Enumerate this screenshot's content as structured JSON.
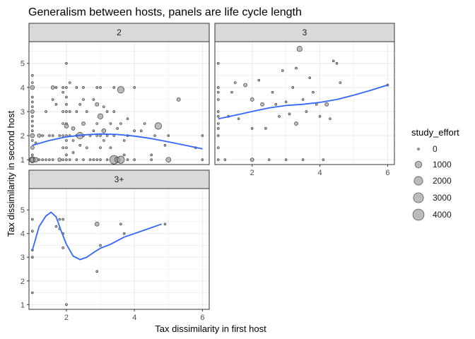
{
  "chart_data": {
    "type": "scatter",
    "title": "Generalism between hosts, panels are life cycle length",
    "xlabel": "Tax dissimilarity in first host",
    "ylabel": "Tax dissimilarity in second host",
    "xlim": [
      0.9,
      6.2
    ],
    "ylim": [
      0.8,
      5.9
    ],
    "x_ticks": [
      2,
      4,
      6
    ],
    "y_ticks": [
      1,
      2,
      3,
      4,
      5
    ],
    "grid": true,
    "legend": {
      "title": "study_effort",
      "position": "right",
      "entries": [
        {
          "label": "0",
          "value": 0
        },
        {
          "label": "1000",
          "value": 1000
        },
        {
          "label": "2000",
          "value": 2000
        },
        {
          "label": "3000",
          "value": 3000
        },
        {
          "label": "4000",
          "value": 4000
        }
      ]
    },
    "colors": {
      "point_fill": "#9e9e9e",
      "point_stroke": "#000000",
      "smooth_line": "#3366ff",
      "strip_fill": "#d9d9d9",
      "grid": "#ebebeb",
      "panel_border": "#333333"
    },
    "panels": [
      {
        "label": "2",
        "points": [
          [
            1,
            1,
            800
          ],
          [
            1,
            1,
            300
          ],
          [
            1,
            1.5,
            100
          ],
          [
            1,
            2,
            200
          ],
          [
            1,
            2.2,
            0
          ],
          [
            1,
            2.4,
            0
          ],
          [
            1,
            2.6,
            0
          ],
          [
            1,
            2.8,
            0
          ],
          [
            1,
            3,
            100
          ],
          [
            1,
            3.2,
            0
          ],
          [
            1,
            3.4,
            0
          ],
          [
            1,
            3.6,
            0
          ],
          [
            1,
            4,
            200
          ],
          [
            1,
            4.2,
            0
          ],
          [
            1,
            4.5,
            0
          ],
          [
            1,
            1.2,
            0
          ],
          [
            1,
            1.8,
            0
          ],
          [
            1.1,
            1,
            300
          ],
          [
            1.1,
            1.7,
            0
          ],
          [
            1.2,
            2,
            100
          ],
          [
            1.2,
            1,
            0
          ],
          [
            1.3,
            2,
            0
          ],
          [
            1.3,
            1,
            0
          ],
          [
            1.4,
            3,
            0
          ],
          [
            1.4,
            1,
            0
          ],
          [
            1.5,
            2,
            0
          ],
          [
            1.5,
            1,
            0
          ],
          [
            1.6,
            4,
            100
          ],
          [
            1.6,
            3.5,
            0
          ],
          [
            1.6,
            2,
            0
          ],
          [
            1.6,
            1,
            0
          ],
          [
            1.7,
            4,
            0
          ],
          [
            1.7,
            3.3,
            0
          ],
          [
            1.8,
            2,
            0
          ],
          [
            1.8,
            1,
            100
          ],
          [
            1.9,
            4,
            0
          ],
          [
            1.9,
            3.8,
            0
          ],
          [
            1.9,
            3,
            0
          ],
          [
            1.9,
            2.5,
            0
          ],
          [
            1.9,
            2,
            0
          ],
          [
            1.9,
            1.5,
            0
          ],
          [
            1.9,
            1,
            0
          ],
          [
            2,
            4,
            0
          ],
          [
            2,
            3.6,
            0
          ],
          [
            2,
            3,
            0
          ],
          [
            2,
            2.5,
            0
          ],
          [
            2,
            2.4,
            200
          ],
          [
            2,
            2,
            0
          ],
          [
            2,
            1.5,
            0
          ],
          [
            2,
            1,
            0
          ],
          [
            2,
            5,
            0
          ],
          [
            2,
            1.2,
            0
          ],
          [
            2,
            1.8,
            0
          ],
          [
            2,
            3.3,
            0
          ],
          [
            2.1,
            4.2,
            0
          ],
          [
            2.1,
            3,
            0
          ],
          [
            2.1,
            2,
            0
          ],
          [
            2.1,
            1,
            0
          ],
          [
            2.2,
            2.3,
            100
          ],
          [
            2.2,
            1.8,
            0
          ],
          [
            2.2,
            1.3,
            0
          ],
          [
            2.3,
            4,
            0
          ],
          [
            2.3,
            3,
            0
          ],
          [
            2.3,
            2,
            0
          ],
          [
            2.3,
            1,
            0
          ],
          [
            2.4,
            2,
            1000
          ],
          [
            2.4,
            3.3,
            0
          ],
          [
            2.4,
            1.6,
            0
          ],
          [
            2.5,
            4,
            0
          ],
          [
            2.5,
            3.5,
            0
          ],
          [
            2.5,
            2.5,
            100
          ],
          [
            2.5,
            2,
            0
          ],
          [
            2.5,
            1,
            0
          ],
          [
            2.6,
            3,
            0
          ],
          [
            2.6,
            1.5,
            0
          ],
          [
            2.7,
            2,
            0
          ],
          [
            2.7,
            1,
            0
          ],
          [
            2.8,
            3.5,
            0
          ],
          [
            2.8,
            2.2,
            0
          ],
          [
            2.8,
            1,
            0
          ],
          [
            2.9,
            4,
            0
          ],
          [
            2.9,
            3.3,
            100
          ],
          [
            2.9,
            2.5,
            0
          ],
          [
            2.9,
            2,
            0
          ],
          [
            2.9,
            1,
            0
          ],
          [
            3,
            2.8,
            500
          ],
          [
            3,
            2,
            0
          ],
          [
            3,
            1.5,
            0
          ],
          [
            3,
            1,
            0
          ],
          [
            3,
            4,
            0
          ],
          [
            3.1,
            2.2,
            200
          ],
          [
            3.1,
            1.8,
            0
          ],
          [
            3.1,
            3.2,
            0
          ],
          [
            3.2,
            3,
            0
          ],
          [
            3.2,
            2,
            0
          ],
          [
            3.2,
            1,
            0
          ],
          [
            3.3,
            2.5,
            0
          ],
          [
            3.3,
            1.5,
            0
          ],
          [
            3.4,
            4,
            0
          ],
          [
            3.4,
            3,
            0
          ],
          [
            3.4,
            2,
            0
          ],
          [
            3.4,
            1,
            2000
          ],
          [
            3.5,
            1,
            500
          ],
          [
            3.5,
            2.3,
            0
          ],
          [
            3.6,
            3.9,
            1000
          ],
          [
            3.6,
            2.5,
            0
          ],
          [
            3.6,
            1,
            1300
          ],
          [
            3.7,
            1.8,
            0
          ],
          [
            3.7,
            1.2,
            0
          ],
          [
            3.8,
            2.7,
            0
          ],
          [
            3.8,
            2,
            0
          ],
          [
            3.8,
            1,
            0
          ],
          [
            4,
            4,
            0
          ],
          [
            4,
            2.2,
            0
          ],
          [
            4,
            1,
            0
          ],
          [
            4.2,
            2.2,
            0
          ],
          [
            4.3,
            2.5,
            0
          ],
          [
            4.5,
            1,
            0
          ],
          [
            4.5,
            1.2,
            0
          ],
          [
            4.6,
            2,
            0
          ],
          [
            4.7,
            2.4,
            1000
          ],
          [
            4.9,
            1.6,
            0
          ],
          [
            5,
            2,
            0
          ],
          [
            5,
            1,
            400
          ],
          [
            5.3,
            3.5,
            100
          ],
          [
            5.8,
            1.5,
            0
          ],
          [
            6,
            2,
            0
          ],
          [
            6,
            1,
            0
          ]
        ],
        "smooth": [
          [
            1,
            1.6
          ],
          [
            1.5,
            1.8
          ],
          [
            2,
            1.95
          ],
          [
            2.5,
            2.03
          ],
          [
            3,
            2.07
          ],
          [
            3.5,
            2.05
          ],
          [
            4,
            1.98
          ],
          [
            4.5,
            1.88
          ],
          [
            5,
            1.74
          ],
          [
            5.5,
            1.6
          ],
          [
            6,
            1.45
          ]
        ]
      },
      {
        "label": "3",
        "points": [
          [
            1,
            5,
            0
          ],
          [
            1,
            4,
            0
          ],
          [
            1,
            3.8,
            0
          ],
          [
            1,
            3.5,
            0
          ],
          [
            1,
            3,
            0
          ],
          [
            1,
            2.8,
            0
          ],
          [
            1,
            2.5,
            0
          ],
          [
            1,
            2.3,
            0
          ],
          [
            1,
            2,
            0
          ],
          [
            1,
            1.5,
            0
          ],
          [
            1,
            1,
            0
          ],
          [
            1.2,
            1,
            0
          ],
          [
            1.3,
            2.8,
            0
          ],
          [
            1.4,
            3.8,
            0
          ],
          [
            1.5,
            4.2,
            0
          ],
          [
            1.6,
            2.7,
            0
          ],
          [
            1.8,
            4.1,
            100
          ],
          [
            2,
            3.5,
            100
          ],
          [
            2,
            2.3,
            0
          ],
          [
            2,
            1,
            100
          ],
          [
            2.2,
            4.3,
            0
          ],
          [
            2.3,
            3.3,
            100
          ],
          [
            2.4,
            2.3,
            0
          ],
          [
            2.5,
            1,
            0
          ],
          [
            2.6,
            3.8,
            0
          ],
          [
            2.7,
            3.3,
            0
          ],
          [
            2.8,
            2.8,
            0
          ],
          [
            2.9,
            4.7,
            0
          ],
          [
            3,
            3.4,
            0
          ],
          [
            3,
            1,
            0
          ],
          [
            3.1,
            2.9,
            0
          ],
          [
            3.2,
            4,
            0
          ],
          [
            3.3,
            4.8,
            0
          ],
          [
            3.3,
            2.5,
            100
          ],
          [
            3.4,
            5.6,
            500
          ],
          [
            3.5,
            3.5,
            0
          ],
          [
            3.5,
            1,
            0
          ],
          [
            3.6,
            3,
            0
          ],
          [
            3.7,
            4.4,
            0
          ],
          [
            3.8,
            3.8,
            0
          ],
          [
            3.9,
            3.3,
            0
          ],
          [
            4,
            2.8,
            0
          ],
          [
            4.1,
            1,
            0
          ],
          [
            4.2,
            3.3,
            100
          ],
          [
            4.3,
            2.7,
            0
          ],
          [
            4.4,
            5.1,
            0
          ],
          [
            4.5,
            5,
            0
          ],
          [
            4.6,
            4.2,
            0
          ],
          [
            6,
            4.1,
            0
          ]
        ],
        "smooth": [
          [
            1,
            2.7
          ],
          [
            1.5,
            2.85
          ],
          [
            2,
            3
          ],
          [
            2.5,
            3.15
          ],
          [
            3,
            3.25
          ],
          [
            3.5,
            3.3
          ],
          [
            4,
            3.38
          ],
          [
            4.5,
            3.5
          ],
          [
            5,
            3.68
          ],
          [
            5.5,
            3.88
          ],
          [
            6,
            4.1
          ]
        ]
      },
      {
        "label": "3+",
        "points": [
          [
            1,
            4.6,
            0
          ],
          [
            1,
            4.1,
            0
          ],
          [
            1,
            3.3,
            0
          ],
          [
            1,
            3,
            0
          ],
          [
            1,
            1.5,
            0
          ],
          [
            1.7,
            4.3,
            0
          ],
          [
            1.8,
            4.2,
            0
          ],
          [
            1.8,
            4.6,
            0
          ],
          [
            1.9,
            4.6,
            0
          ],
          [
            1.9,
            4,
            0
          ],
          [
            1.9,
            3.4,
            0
          ],
          [
            2,
            1,
            0
          ],
          [
            2.9,
            4.4,
            200
          ],
          [
            2.9,
            2.4,
            0
          ],
          [
            3,
            3.5,
            0
          ],
          [
            3.6,
            4.4,
            0
          ],
          [
            3.7,
            4,
            0
          ],
          [
            4.9,
            4.4,
            0
          ]
        ],
        "smooth": [
          [
            1,
            3.3
          ],
          [
            1.2,
            4.3
          ],
          [
            1.4,
            4.75
          ],
          [
            1.55,
            4.9
          ],
          [
            1.7,
            4.7
          ],
          [
            1.85,
            4.1
          ],
          [
            2.0,
            3.55
          ],
          [
            2.2,
            3.05
          ],
          [
            2.4,
            2.9
          ],
          [
            2.6,
            3.0
          ],
          [
            2.8,
            3.2
          ],
          [
            3.0,
            3.38
          ],
          [
            3.3,
            3.55
          ],
          [
            3.7,
            3.85
          ],
          [
            4.2,
            4.1
          ],
          [
            4.8,
            4.4
          ]
        ]
      }
    ]
  }
}
